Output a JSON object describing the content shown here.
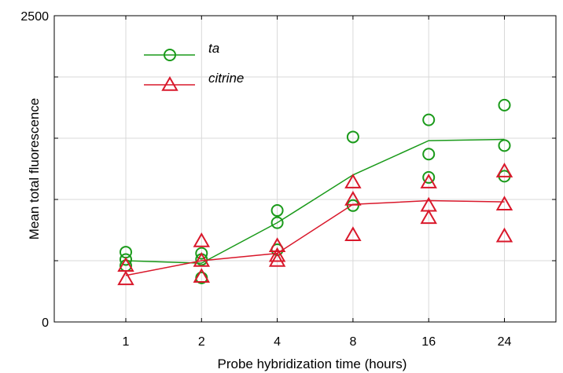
{
  "colors": {
    "ta": "#1a9a1a",
    "citrine": "#d9182b",
    "grid": "#d9d9d9",
    "axis": "#000000"
  },
  "chart_data": {
    "type": "scatter",
    "xlabel": "Probe hybridization time (hours)",
    "ylabel": "Mean total fluorescence",
    "categories": [
      "1",
      "2",
      "4",
      "8",
      "16",
      "24"
    ],
    "ylim": [
      0,
      2500
    ],
    "yticks": [
      0,
      500,
      1000,
      1500,
      2000,
      2500
    ],
    "ytick_labels": [
      "0",
      "",
      "",
      "",
      "",
      "2500"
    ],
    "grid": true,
    "legend_position": "top-left",
    "series": [
      {
        "name": "ta",
        "marker": "circle",
        "points": [
          {
            "x": "1",
            "y": 570
          },
          {
            "x": "1",
            "y": 510
          },
          {
            "x": "1",
            "y": 460
          },
          {
            "x": "2",
            "y": 560
          },
          {
            "x": "2",
            "y": 510
          },
          {
            "x": "2",
            "y": 360
          },
          {
            "x": "4",
            "y": 910
          },
          {
            "x": "4",
            "y": 810
          },
          {
            "x": "4",
            "y": 590
          },
          {
            "x": "8",
            "y": 1510
          },
          {
            "x": "8",
            "y": 950
          },
          {
            "x": "16",
            "y": 1650
          },
          {
            "x": "16",
            "y": 1370
          },
          {
            "x": "16",
            "y": 1180
          },
          {
            "x": "24",
            "y": 1770
          },
          {
            "x": "24",
            "y": 1440
          },
          {
            "x": "24",
            "y": 1190
          }
        ],
        "mean": [
          500,
          480,
          810,
          1200,
          1480,
          1490
        ]
      },
      {
        "name": "citrine",
        "marker": "triangle",
        "points": [
          {
            "x": "1",
            "y": 460
          },
          {
            "x": "1",
            "y": 350
          },
          {
            "x": "2",
            "y": 660
          },
          {
            "x": "2",
            "y": 500
          },
          {
            "x": "2",
            "y": 370
          },
          {
            "x": "4",
            "y": 620
          },
          {
            "x": "4",
            "y": 540
          },
          {
            "x": "4",
            "y": 500
          },
          {
            "x": "8",
            "y": 1140
          },
          {
            "x": "8",
            "y": 1000
          },
          {
            "x": "8",
            "y": 710
          },
          {
            "x": "16",
            "y": 1140
          },
          {
            "x": "16",
            "y": 950
          },
          {
            "x": "16",
            "y": 850
          },
          {
            "x": "24",
            "y": 1230
          },
          {
            "x": "24",
            "y": 960
          },
          {
            "x": "24",
            "y": 700
          }
        ],
        "mean": [
          380,
          500,
          560,
          960,
          990,
          980
        ]
      }
    ]
  }
}
